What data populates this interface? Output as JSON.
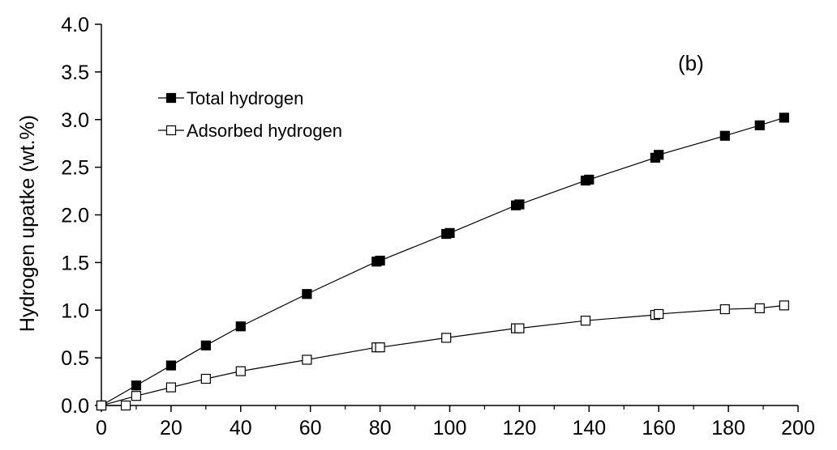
{
  "chart_data": {
    "type": "line",
    "title": "",
    "annotation": "(b)",
    "xlabel": "",
    "ylabel": "Hydrogen upatke (wt.%)",
    "xlim": [
      0,
      200
    ],
    "ylim": [
      0,
      4.0
    ],
    "xticks": [
      "0",
      "20",
      "40",
      "60",
      "80",
      "100",
      "120",
      "140",
      "160",
      "180",
      "200"
    ],
    "yticks": [
      "0.0",
      "0.5",
      "1.0",
      "1.5",
      "2.0",
      "2.5",
      "3.0",
      "3.5",
      "4.0"
    ],
    "grid": false,
    "legend_position": "top-left",
    "series": [
      {
        "name": "Total hydrogen",
        "marker": "filled-square",
        "color": "#000000",
        "x": [
          0,
          10,
          20,
          30,
          40,
          59,
          79,
          80,
          99,
          100,
          119,
          120,
          139,
          140,
          159,
          160,
          179,
          189,
          196
        ],
        "y": [
          0.0,
          0.21,
          0.42,
          0.63,
          0.83,
          1.17,
          1.51,
          1.52,
          1.8,
          1.81,
          2.1,
          2.11,
          2.36,
          2.37,
          2.6,
          2.63,
          2.83,
          2.94,
          3.02
        ]
      },
      {
        "name": "Adsorbed hydrogen",
        "marker": "open-square",
        "color": "#000000",
        "x": [
          0,
          7,
          0,
          10,
          20,
          30,
          40,
          59,
          79,
          80,
          99,
          119,
          120,
          139,
          159,
          160,
          179,
          189,
          196
        ],
        "y": [
          0.0,
          0.0,
          0.0,
          0.1,
          0.19,
          0.28,
          0.36,
          0.48,
          0.61,
          0.61,
          0.71,
          0.81,
          0.81,
          0.89,
          0.95,
          0.96,
          1.01,
          1.02,
          1.05
        ]
      }
    ]
  }
}
